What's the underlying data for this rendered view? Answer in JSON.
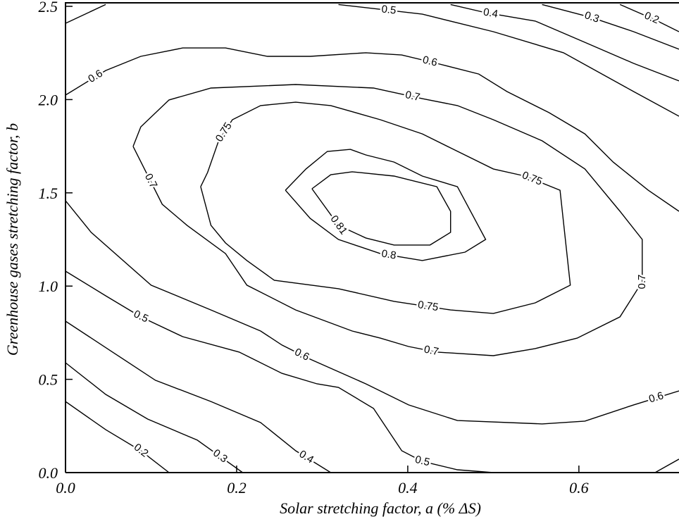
{
  "chart_data": {
    "type": "contour",
    "x_label": "Solar stretching factor, a (% ΔS)",
    "y_label": "Greenhouse gases stretching factor, b",
    "xlim": [
      0,
      0.717
    ],
    "ylim": [
      0,
      2.52
    ],
    "xticks": [
      {
        "value": 0,
        "label": "0.0"
      },
      0.2,
      0.4,
      0.6
    ],
    "yticks": [
      {
        "value": 0,
        "label": "0.0"
      },
      0.5,
      {
        "value": 1,
        "label": "1.0"
      },
      1.5,
      {
        "value": 2,
        "label": "2.0"
      },
      2.5
    ],
    "color": "#000000",
    "contours": [
      {
        "level": 0.2,
        "x": [
          0,
          0.047,
          0.088,
          0.121
        ],
        "y": [
          0.381,
          0.23,
          0.117,
          0
        ]
      },
      {
        "level": 0.3,
        "x": [
          0,
          0.047,
          0.096,
          0.154,
          0.207
        ],
        "y": [
          0.589,
          0.419,
          0.287,
          0.174,
          0
        ]
      },
      {
        "level": 0.4,
        "x": [
          0,
          0.055,
          0.105,
          0.17,
          0.228,
          0.269,
          0.31
        ],
        "y": [
          0.812,
          0.646,
          0.495,
          0.381,
          0.268,
          0.117,
          0
        ]
      },
      {
        "level": 0.5,
        "x": [
          0,
          0.047,
          0.088,
          0.137,
          0.203,
          0.253,
          0.294,
          0.319,
          0.36,
          0.393,
          0.417,
          0.458,
          0.5
        ],
        "y": [
          1.08,
          0.948,
          0.835,
          0.729,
          0.646,
          0.532,
          0.476,
          0.457,
          0.344,
          0.117,
          0.06,
          0.015,
          0
        ]
      },
      {
        "level": 0.5,
        "x": [
          0.689,
          0.717
        ],
        "y": [
          0,
          0.072
        ]
      },
      {
        "level": 0.6,
        "x": [
          0,
          0.03,
          0.1,
          0.17,
          0.228,
          0.253,
          0.286,
          0.351,
          0.401,
          0.458,
          0.557,
          0.607,
          0.664,
          0.717
        ],
        "y": [
          1.458,
          1.288,
          1.005,
          0.872,
          0.759,
          0.684,
          0.608,
          0.476,
          0.363,
          0.279,
          0.261,
          0.276,
          0.363,
          0.438
        ]
      },
      {
        "level": 0.7,
        "x": [
          0.079,
          0.113,
          0.142,
          0.187,
          0.212,
          0.269,
          0.335,
          0.368,
          0.401,
          0.434,
          0.5,
          0.549,
          0.598,
          0.648,
          0.674,
          0.674,
          0.648,
          0.607,
          0.557,
          0.5,
          0.458,
          0.417,
          0.36,
          0.269,
          0.17,
          0.121,
          0.088,
          0.079
        ],
        "y": [
          1.749,
          1.439,
          1.326,
          1.174,
          1.005,
          0.872,
          0.759,
          0.721,
          0.676,
          0.646,
          0.627,
          0.665,
          0.721,
          0.835,
          1.023,
          1.25,
          1.401,
          1.628,
          1.779,
          1.892,
          1.968,
          2.005,
          2.062,
          2.081,
          2.062,
          1.998,
          1.854,
          1.749
        ]
      },
      {
        "level": 0.75,
        "x": [
          0.158,
          0.166,
          0.179,
          0.195,
          0.228,
          0.269,
          0.31,
          0.368,
          0.417,
          0.45,
          0.5,
          0.537,
          0.578,
          0.59,
          0.549,
          0.5,
          0.45,
          0.384,
          0.319,
          0.244,
          0.212,
          0.187,
          0.17,
          0.158
        ],
        "y": [
          1.533,
          1.609,
          1.779,
          1.892,
          1.968,
          1.986,
          1.968,
          1.892,
          1.816,
          1.741,
          1.628,
          1.59,
          1.514,
          1.005,
          0.91,
          0.853,
          0.872,
          0.918,
          0.986,
          1.031,
          1.137,
          1.231,
          1.326,
          1.533
        ]
      },
      {
        "level": 0.8,
        "x": [
          0.257,
          0.281,
          0.306,
          0.333,
          0.351,
          0.384,
          0.417,
          0.458,
          0.491,
          0.467,
          0.417,
          0.368,
          0.319,
          0.286,
          0.257
        ],
        "y": [
          1.514,
          1.628,
          1.722,
          1.733,
          1.703,
          1.665,
          1.59,
          1.533,
          1.25,
          1.182,
          1.137,
          1.174,
          1.25,
          1.363,
          1.514
        ]
      },
      {
        "level": 0.81,
        "x": [
          0.288,
          0.31,
          0.335,
          0.384,
          0.434,
          0.45,
          0.45,
          0.426,
          0.384,
          0.351,
          0.319,
          0.288
        ],
        "y": [
          1.522,
          1.597,
          1.613,
          1.59,
          1.533,
          1.401,
          1.288,
          1.22,
          1.22,
          1.258,
          1.326,
          1.522
        ]
      },
      {
        "level": 0.6,
        "x": [
          0,
          0.047,
          0.088,
          0.137,
          0.187,
          0.236,
          0.286,
          0.351,
          0.393,
          0.434,
          0.483,
          0.516,
          0.565,
          0.607,
          0.64,
          0.681,
          0.717
        ],
        "y": [
          2.024,
          2.156,
          2.232,
          2.277,
          2.277,
          2.232,
          2.232,
          2.251,
          2.239,
          2.194,
          2.137,
          2.043,
          1.93,
          1.816,
          1.665,
          1.514,
          1.401
        ]
      },
      {
        "level": 0.5,
        "x": [
          0,
          0.047
        ],
        "y": [
          2.409,
          2.51
        ]
      },
      {
        "level": 0.5,
        "x": [
          0.319,
          0.417,
          0.5,
          0.582,
          0.664,
          0.717
        ],
        "y": [
          2.51,
          2.458,
          2.364,
          2.251,
          2.043,
          1.911
        ]
      },
      {
        "level": 0.4,
        "x": [
          0.45,
          0.491,
          0.549,
          0.607,
          0.664,
          0.717
        ],
        "y": [
          2.51,
          2.466,
          2.421,
          2.307,
          2.194,
          2.1
        ]
      },
      {
        "level": 0.3,
        "x": [
          0.557,
          0.615,
          0.664,
          0.717
        ],
        "y": [
          2.51,
          2.44,
          2.364,
          2.27
        ]
      },
      {
        "level": 0.2,
        "x": [
          0.648,
          0.689,
          0.717
        ],
        "y": [
          2.51,
          2.428,
          2.364
        ]
      }
    ]
  }
}
